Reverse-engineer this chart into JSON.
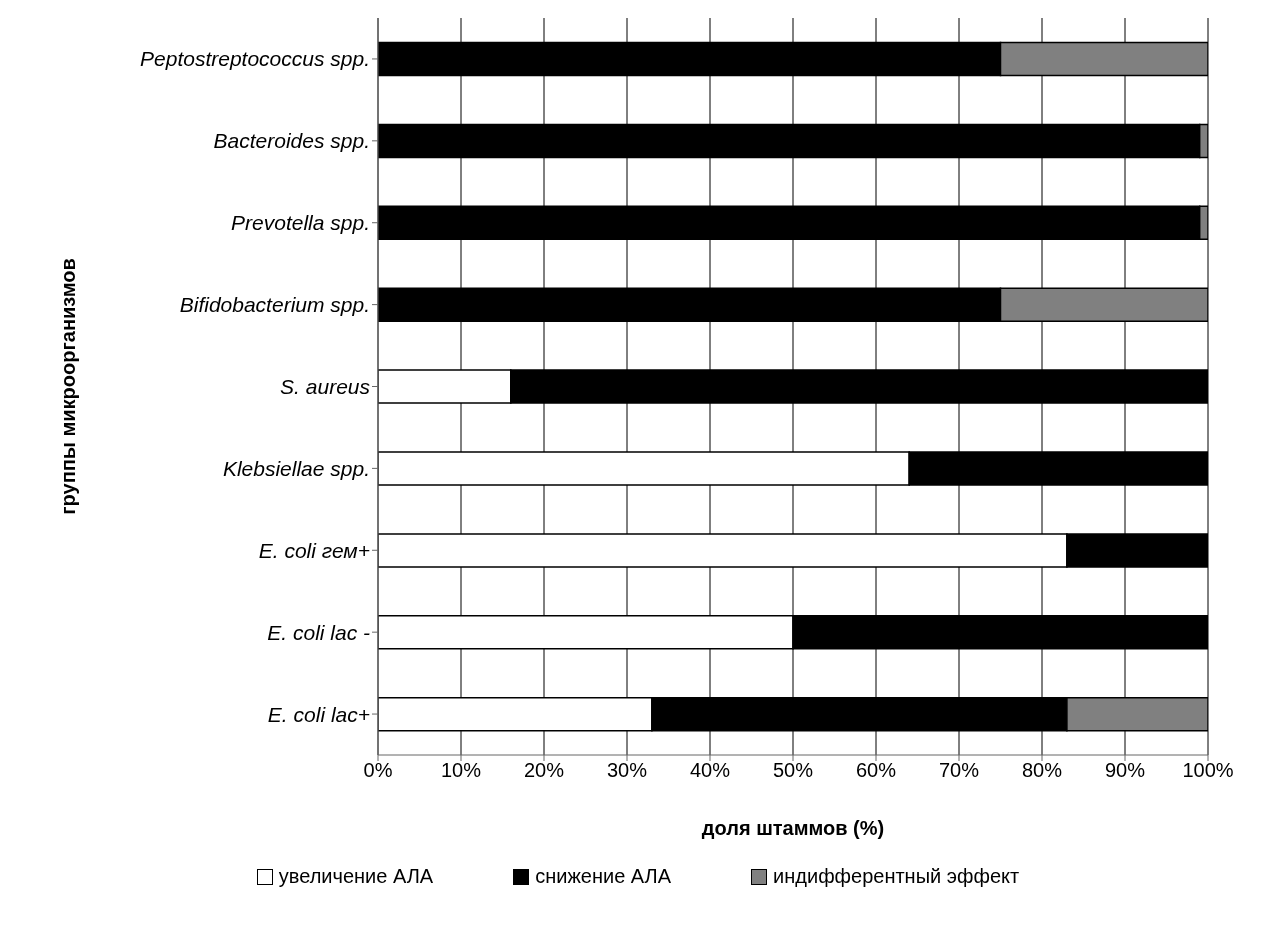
{
  "chart_data": {
    "type": "bar",
    "orientation": "horizontal",
    "stacked": true,
    "xlabel": "доля штаммов (%)",
    "ylabel": "группы микроорганизмов",
    "categories": [
      "Peptostreptococcus spp.",
      "Bacteroides spp.",
      "Prevotella spp.",
      "Bifidobacterium spp.",
      "S. aureus",
      "Klebsiellae spp.",
      "E. coli гем+",
      "E. coli lac -",
      "E. coli lac+"
    ],
    "series": [
      {
        "name": "увеличение АЛА",
        "color": "#ffffff",
        "values": [
          0,
          0,
          0,
          0,
          16,
          64,
          83,
          50,
          33
        ]
      },
      {
        "name": "снижение АЛА",
        "color": "#000000",
        "values": [
          75,
          99,
          99,
          75,
          84,
          36,
          17,
          50,
          50
        ]
      },
      {
        "name": "индифферентный эффект",
        "color": "#808080",
        "values": [
          25,
          1,
          1,
          25,
          0,
          0,
          0,
          0,
          17
        ]
      }
    ],
    "xlim": [
      0,
      100
    ],
    "xticks": [
      {
        "value": 0,
        "label": "0%"
      },
      {
        "value": 10,
        "label": "10%"
      },
      {
        "value": 20,
        "label": "20%"
      },
      {
        "value": 30,
        "label": "30%"
      },
      {
        "value": 40,
        "label": "40%"
      },
      {
        "value": 50,
        "label": "50%"
      },
      {
        "value": 60,
        "label": "60%"
      },
      {
        "value": 70,
        "label": "70%"
      },
      {
        "value": 80,
        "label": "80%"
      },
      {
        "value": 90,
        "label": "90%"
      },
      {
        "value": 100,
        "label": "100%"
      }
    ],
    "grid": "x",
    "legend": "bottom"
  }
}
